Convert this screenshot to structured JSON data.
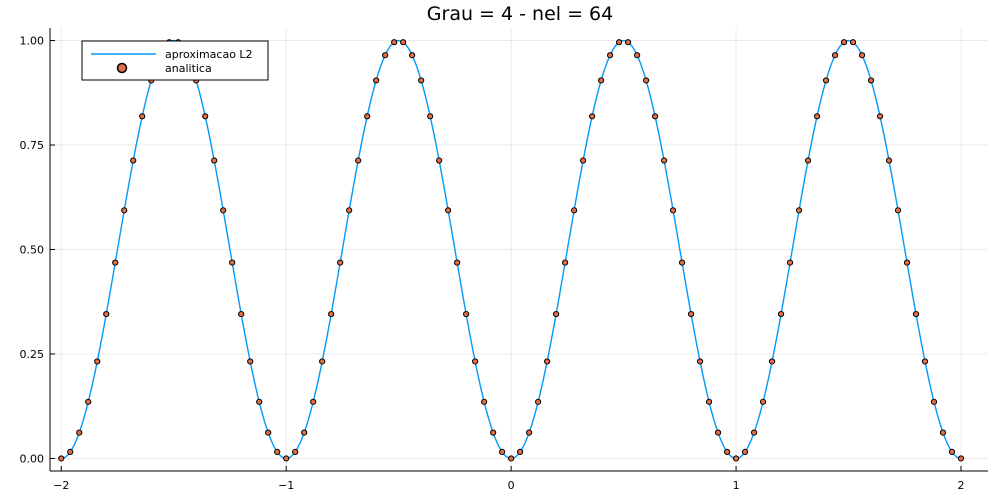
{
  "chart_data": {
    "type": "line",
    "title": "Grau = 4 - nel = 64",
    "xlabel": "",
    "ylabel": "",
    "xlim": [
      -2.05,
      2.12
    ],
    "ylim": [
      -0.03,
      1.03
    ],
    "x_ticks": [
      -2,
      -1,
      0,
      1,
      2
    ],
    "x_tick_labels": [
      "−2",
      "−1",
      "0",
      "1",
      "2"
    ],
    "y_ticks": [
      0.0,
      0.25,
      0.5,
      0.75,
      1.0
    ],
    "y_tick_labels": [
      "0.00",
      "0.25",
      "0.50",
      "0.75",
      "1.00"
    ],
    "grid": true,
    "legend_position": "top-left",
    "series": [
      {
        "name": "aproximacao L2",
        "kind": "line",
        "color": "#009AFA",
        "function": "sin(pi*x)^2",
        "x_range": [
          -2,
          2
        ]
      },
      {
        "name": "analitica",
        "kind": "scatter",
        "color": "#E26F46",
        "function": "sin(pi*x)^2",
        "x_start": -2,
        "x_step": 0.04,
        "n_points": 101
      }
    ]
  }
}
